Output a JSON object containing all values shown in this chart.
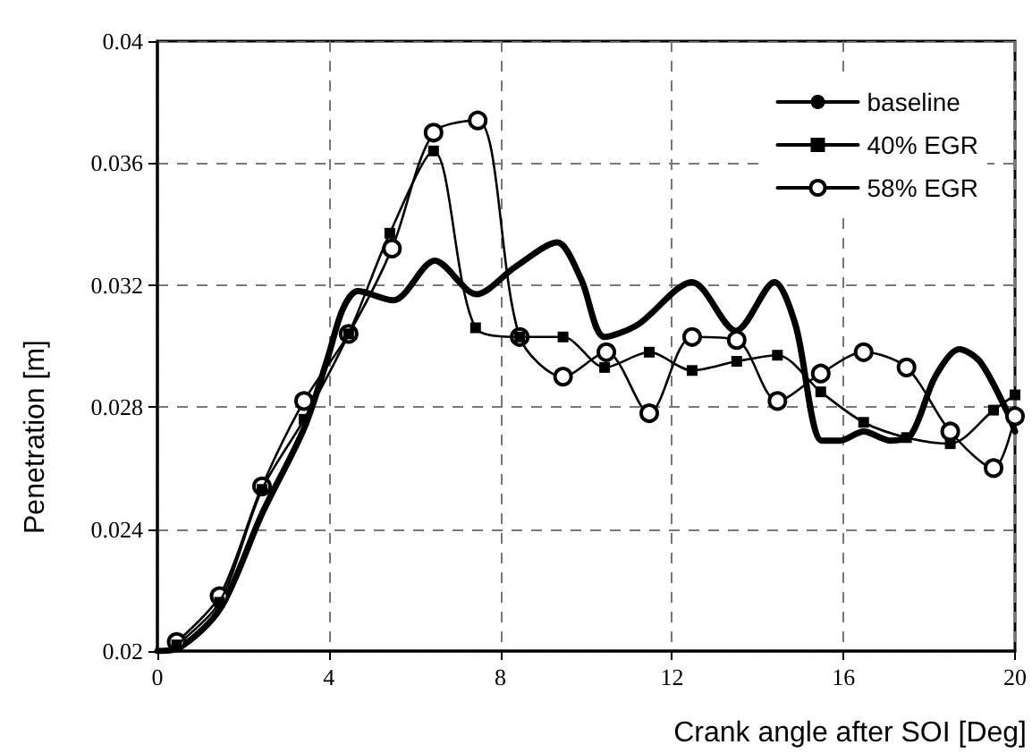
{
  "chart_data": {
    "type": "line",
    "xlabel": "Crank angle after SOI [Deg]",
    "ylabel": "Penetration [m]",
    "xlim": [
      0,
      20
    ],
    "xticks": [
      0,
      4,
      8,
      12,
      16,
      20
    ],
    "ylim": [
      0.02,
      0.04
    ],
    "yticks": [
      0.02,
      0.024,
      0.028,
      0.032,
      0.036,
      0.04
    ],
    "grid": true,
    "legend": "top right",
    "series": [
      {
        "name": "baseline",
        "color": "#000000",
        "marker": "none",
        "x": [
          0,
          0.5,
          1.47,
          2.44,
          3.42,
          3.97,
          4.32,
          4.67,
          5.5,
          6.47,
          7.44,
          8.35,
          9.32,
          9.88,
          10.43,
          11.2,
          12.47,
          13.49,
          14.39,
          14.88,
          15.5,
          15.92,
          16.47,
          17.1,
          17.58,
          18.14,
          18.7,
          19.18,
          19.8,
          20
        ],
        "values": [
          0.02,
          0.0201,
          0.0214,
          0.0245,
          0.0273,
          0.0296,
          0.0312,
          0.0318,
          0.0315,
          0.0328,
          0.0317,
          0.0326,
          0.0334,
          0.0322,
          0.0303,
          0.0307,
          0.0321,
          0.0305,
          0.0321,
          0.0307,
          0.0269,
          0.0269,
          0.0272,
          0.0269,
          0.0271,
          0.029,
          0.0299,
          0.0295,
          0.0279,
          0.0272
        ]
      },
      {
        "name": "40% EGR",
        "color": "#000000",
        "marker": "square",
        "x": [
          0.45,
          1.45,
          2.44,
          3.42,
          4.46,
          5.42,
          6.44,
          7.42,
          8.45,
          9.46,
          10.43,
          11.47,
          12.47,
          13.51,
          14.46,
          15.47,
          16.47,
          17.47,
          18.49,
          19.5,
          20
        ],
        "values": [
          0.0202,
          0.0216,
          0.0253,
          0.0276,
          0.0304,
          0.0337,
          0.0364,
          0.0306,
          0.0303,
          0.0303,
          0.0293,
          0.0298,
          0.0292,
          0.0295,
          0.0297,
          0.0285,
          0.0275,
          0.027,
          0.0268,
          0.0279,
          0.0284
        ]
      },
      {
        "name": "58% EGR",
        "color": "#000000",
        "marker": "circle",
        "x": [
          0.45,
          1.45,
          2.44,
          3.42,
          4.46,
          5.47,
          6.44,
          7.47,
          8.45,
          9.46,
          10.47,
          11.47,
          12.47,
          13.51,
          14.46,
          15.47,
          16.47,
          17.47,
          18.49,
          19.5,
          20
        ],
        "values": [
          0.0203,
          0.0218,
          0.0254,
          0.0282,
          0.0304,
          0.0332,
          0.037,
          0.0374,
          0.0303,
          0.029,
          0.0298,
          0.0278,
          0.0303,
          0.0302,
          0.0282,
          0.0291,
          0.0298,
          0.0293,
          0.0272,
          0.026,
          0.0277
        ]
      }
    ]
  }
}
